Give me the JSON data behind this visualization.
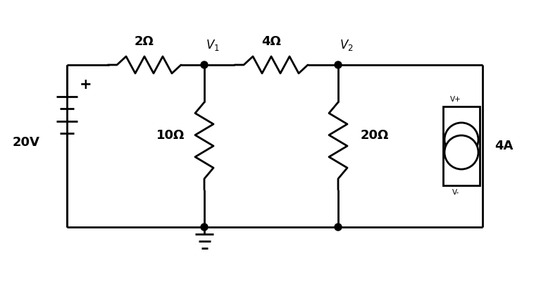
{
  "bg_color": "#ffffff",
  "line_color": "#000000",
  "line_width": 2.0,
  "text_color": "#000000",
  "labels": {
    "voltage_source": "20V",
    "r1": "2Ω",
    "r2": "4Ω",
    "r3": "10Ω",
    "r4": "20Ω",
    "current_source": "4A",
    "node1": "V",
    "node1_sub": "1",
    "node2": "V",
    "node2_sub": "2",
    "vplus": "V+",
    "vminus": "V-",
    "plus": "+"
  },
  "figsize": [
    7.68,
    4.07
  ],
  "dpi": 100,
  "xlim": [
    0,
    7.68
  ],
  "ylim": [
    0,
    4.07
  ]
}
